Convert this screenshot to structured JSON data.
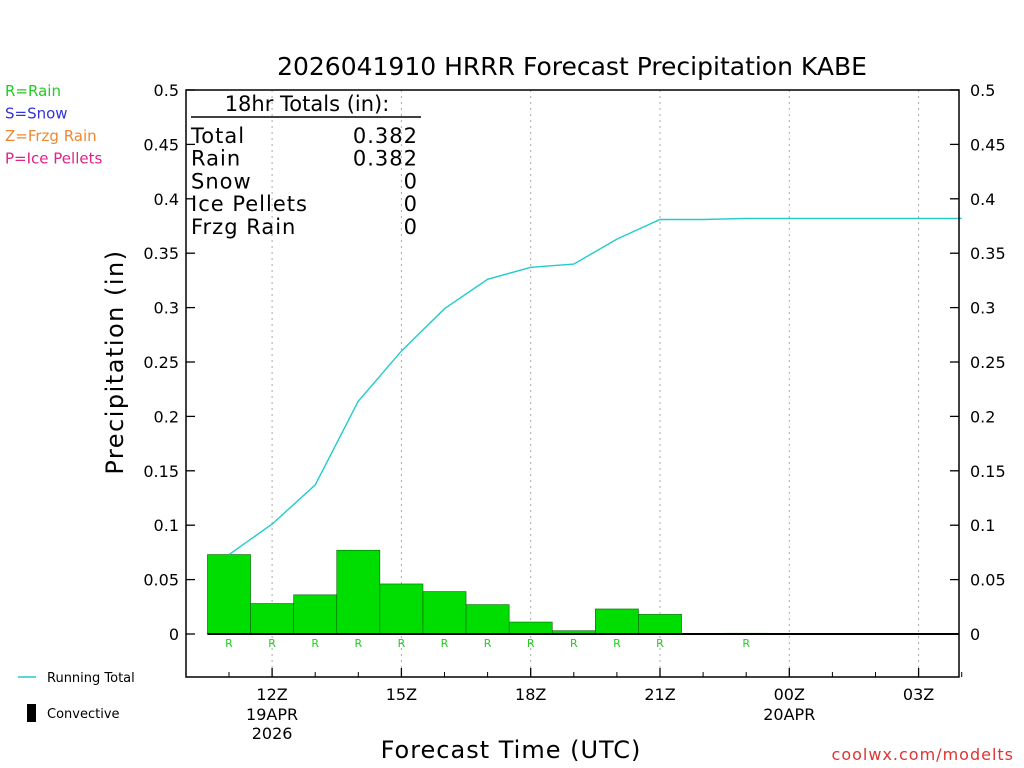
{
  "chart_data": {
    "type": "bar",
    "title": "2026041910 HRRR Forecast Precipitation KABE",
    "xlabel": "Forecast Time (UTC)",
    "ylabel": "Precipitation (in)",
    "ylim": [
      -0.04,
      0.5
    ],
    "y_ticks": [
      "0",
      "0.05",
      "0.1",
      "0.15",
      "0.2",
      "0.25",
      "0.3",
      "0.35",
      "0.4",
      "0.45",
      "0.5"
    ],
    "y_tick_values": [
      0,
      0.05,
      0.1,
      0.15,
      0.2,
      0.25,
      0.3,
      0.35,
      0.4,
      0.45,
      0.5
    ],
    "xlim_hours": [
      10.5,
      28.5
    ],
    "x_ticks": [
      {
        "hour": 12,
        "label": "12Z",
        "date": "19APR",
        "year": "2026"
      },
      {
        "hour": 15,
        "label": "15Z",
        "date": "",
        "year": ""
      },
      {
        "hour": 18,
        "label": "18Z",
        "date": "",
        "year": ""
      },
      {
        "hour": 21,
        "label": "21Z",
        "date": "",
        "year": ""
      },
      {
        "hour": 24,
        "label": "00Z",
        "date": "20APR",
        "year": ""
      },
      {
        "hour": 27,
        "label": "03Z",
        "date": "",
        "year": ""
      }
    ],
    "hours": [
      11,
      12,
      13,
      14,
      15,
      16,
      17,
      18,
      19,
      20,
      21,
      22,
      23,
      24,
      25,
      26,
      27,
      28
    ],
    "series": [
      {
        "name": "Hourly Precipitation (Rain)",
        "color": "#00dd00",
        "values": [
          0.073,
          0.028,
          0.036,
          0.077,
          0.046,
          0.039,
          0.027,
          0.011,
          0.003,
          0.023,
          0.018,
          0.0005,
          0.001,
          0,
          0,
          0,
          0,
          0
        ]
      },
      {
        "name": "Running Total",
        "color": "#22cccc",
        "values": [
          0.073,
          0.101,
          0.137,
          0.214,
          0.26,
          0.299,
          0.326,
          0.337,
          0.34,
          0.363,
          0.381,
          0.381,
          0.382,
          0.382,
          0.382,
          0.382,
          0.382,
          0.382
        ]
      }
    ],
    "ptype_labels": [
      {
        "hour": 11,
        "label": "R"
      },
      {
        "hour": 12,
        "label": "R"
      },
      {
        "hour": 13,
        "label": "R"
      },
      {
        "hour": 14,
        "label": "R"
      },
      {
        "hour": 15,
        "label": "R"
      },
      {
        "hour": 16,
        "label": "R"
      },
      {
        "hour": 17,
        "label": "R"
      },
      {
        "hour": 18,
        "label": "R"
      },
      {
        "hour": 19,
        "label": "R"
      },
      {
        "hour": 20,
        "label": "R"
      },
      {
        "hour": 21,
        "label": "R"
      },
      {
        "hour": 23,
        "label": "R"
      }
    ]
  },
  "totals": {
    "header": "18hr Totals (in):",
    "rows": [
      {
        "label": "Total",
        "value": "0.382"
      },
      {
        "label": "Rain",
        "value": "0.382"
      },
      {
        "label": "Snow",
        "value": "0"
      },
      {
        "label": "Ice Pellets",
        "value": "0"
      },
      {
        "label": "Frzg Rain",
        "value": "0"
      }
    ]
  },
  "ptype_legend": [
    {
      "text": "R=Rain",
      "color": "#22cc22"
    },
    {
      "text": "S=Snow",
      "color": "#3333dd"
    },
    {
      "text": "Z=Frzg Rain",
      "color": "#ee8833"
    },
    {
      "text": "P=Ice Pellets",
      "color": "#dd2288"
    }
  ],
  "line_legend": {
    "running_total": "Running Total",
    "convective": "Convective"
  },
  "credit": "coolwx.com/modelts",
  "colors": {
    "rain": "#00dd00",
    "running_total": "#22cccc",
    "credit": "#dd3333",
    "convective": "#000000"
  }
}
